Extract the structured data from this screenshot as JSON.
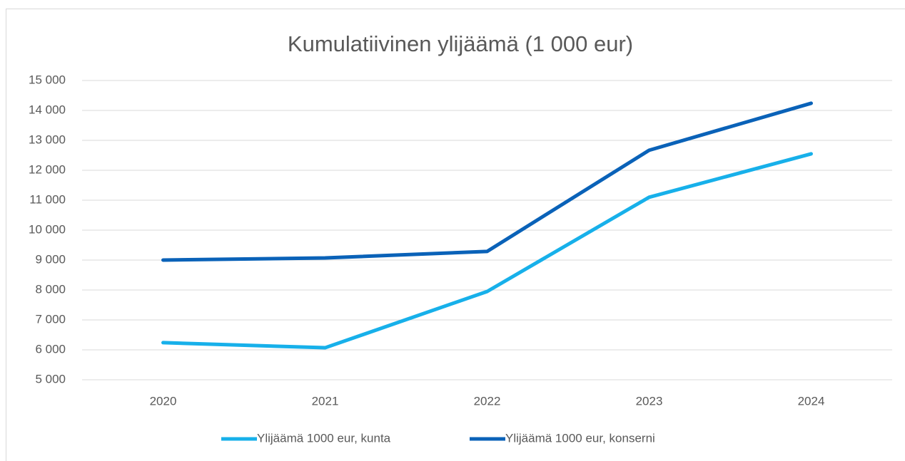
{
  "chart_data": {
    "type": "line",
    "title": "Kumulatiivinen ylijäämä (1 000 eur)",
    "categories": [
      "2020",
      "2021",
      "2022",
      "2023",
      "2024"
    ],
    "series": [
      {
        "name": "Ylijäämä 1000 eur, kunta",
        "color": "#17b0ea",
        "values": [
          6240,
          6070,
          7950,
          11100,
          12550
        ]
      },
      {
        "name": "Ylijäämä 1000 eur, konserni",
        "color": "#0a62b8",
        "values": [
          9000,
          9070,
          9290,
          12670,
          14240
        ]
      }
    ],
    "ylim": [
      5000,
      15000
    ],
    "yticks": [
      {
        "value": 5000,
        "label": "5 000"
      },
      {
        "value": 6000,
        "label": "6 000"
      },
      {
        "value": 7000,
        "label": "7 000"
      },
      {
        "value": 8000,
        "label": "8 000"
      },
      {
        "value": 9000,
        "label": "9 000"
      },
      {
        "value": 10000,
        "label": "10 000"
      },
      {
        "value": 11000,
        "label": "11 000"
      },
      {
        "value": 12000,
        "label": "12 000"
      },
      {
        "value": 13000,
        "label": "13 000"
      },
      {
        "value": 14000,
        "label": "14 000"
      },
      {
        "value": 15000,
        "label": "15 000"
      }
    ],
    "grid": true,
    "legend": "bottom"
  }
}
